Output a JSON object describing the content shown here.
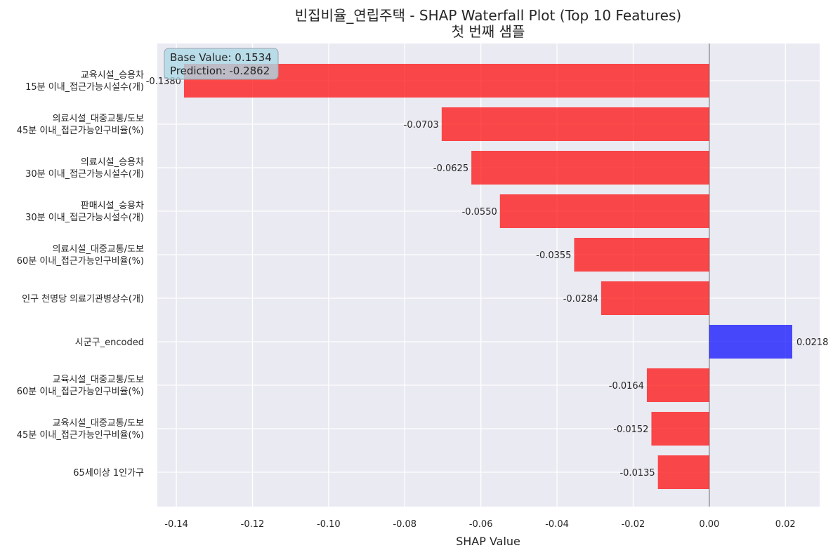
{
  "chart_data": {
    "type": "bar",
    "orientation": "horizontal",
    "title": "빈집비율_연립주택 - SHAP Waterfall Plot (Top 10 Features)",
    "subtitle": "첫 번째 샘플",
    "xlabel": "SHAP Value",
    "ylabel": "",
    "xlim": [
      -0.145,
      0.029
    ],
    "xticks": [
      -0.14,
      -0.12,
      -0.1,
      -0.08,
      -0.06,
      -0.04,
      -0.02,
      0.0,
      0.02
    ],
    "xtick_labels": [
      "-0.14",
      "-0.12",
      "-0.10",
      "-0.08",
      "-0.06",
      "-0.04",
      "-0.02",
      "0.00",
      "0.02"
    ],
    "grid": true,
    "categories": [
      [
        "교육시설_승용차",
        "15분 이내_접근가능시설수(개)"
      ],
      [
        "의료시설_대중교통/도보",
        "45분 이내_접근가능인구비율(%)"
      ],
      [
        "의료시설_승용차",
        "30분 이내_접근가능시설수(개)"
      ],
      [
        "판매시설_승용차",
        "30분 이내_접근가능시설수(개)"
      ],
      [
        "의료시설_대중교통/도보",
        "60분 이내_접근가능인구비율(%)"
      ],
      [
        "인구 천명당 의료기관병상수(개)"
      ],
      [
        "시군구_encoded"
      ],
      [
        "교육시설_대중교통/도보",
        "60분 이내_접근가능인구비율(%)"
      ],
      [
        "교육시설_대중교통/도보",
        "45분 이내_접근가능인구비율(%)"
      ],
      [
        "65세이상 1인가구"
      ]
    ],
    "values": [
      -0.138,
      -0.0703,
      -0.0625,
      -0.055,
      -0.0355,
      -0.0284,
      0.0218,
      -0.0164,
      -0.0152,
      -0.0135
    ],
    "value_labels": [
      "-0.1380",
      "-0.0703",
      "-0.0625",
      "-0.0550",
      "-0.0355",
      "-0.0284",
      "0.0218",
      "-0.0164",
      "-0.0152",
      "-0.0135"
    ],
    "colors": {
      "negative": "#ff0000",
      "positive": "#0000ff"
    },
    "annotation": [
      "Base Value: 0.1534",
      "Prediction: -0.2862"
    ]
  }
}
